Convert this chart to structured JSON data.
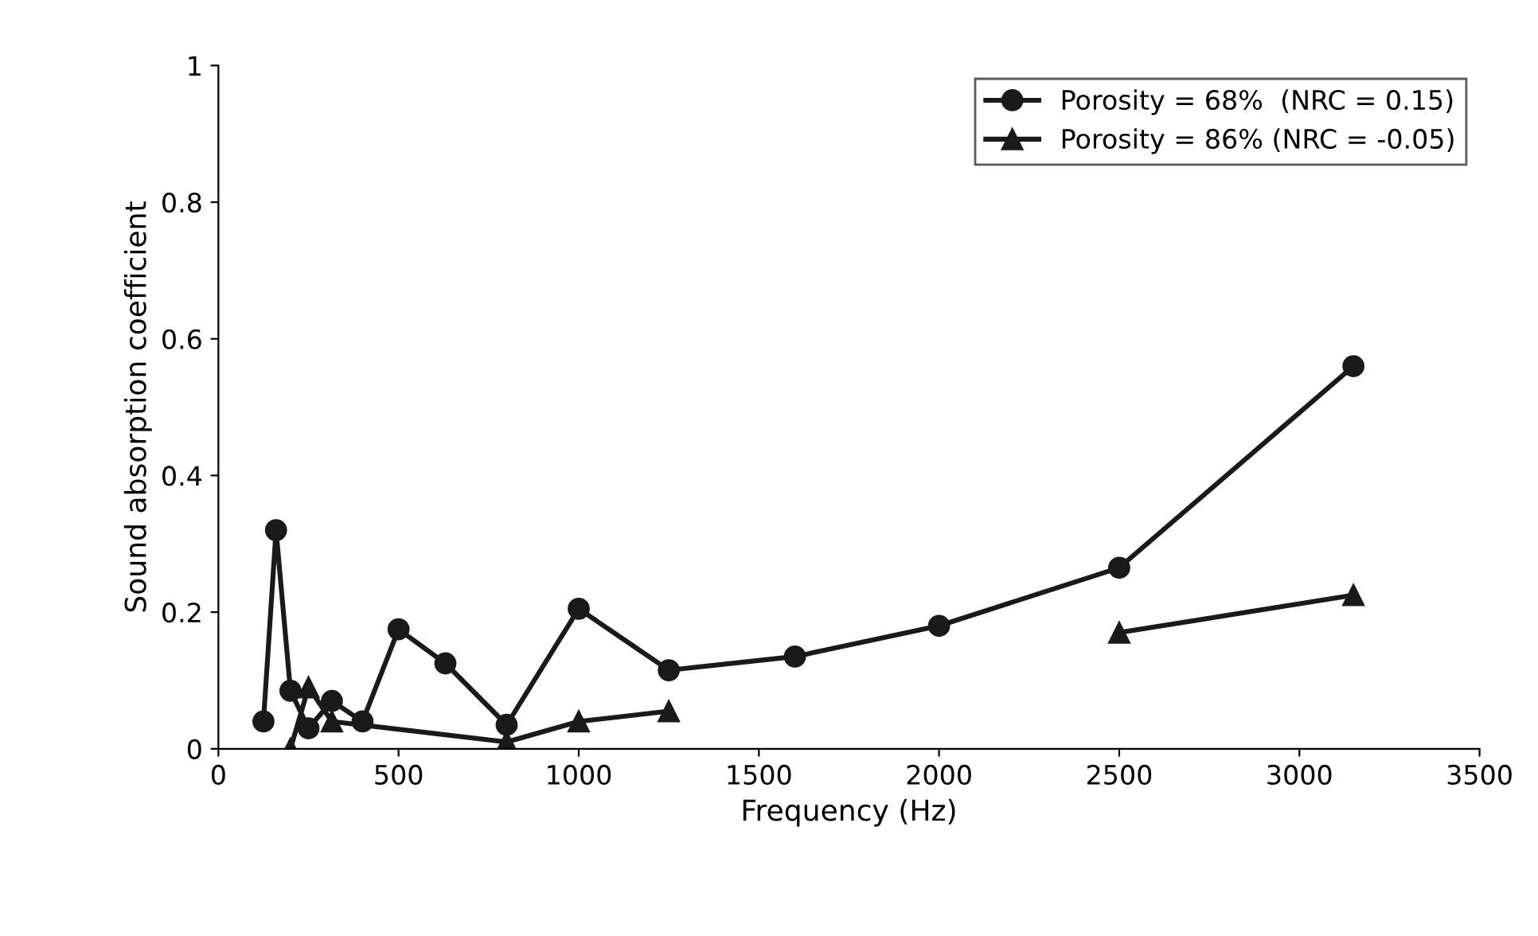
{
  "chart_data": {
    "type": "line",
    "xlabel": "Frequency (Hz)",
    "ylabel": "Sound absorption coefficient",
    "xlim": [
      0,
      3500
    ],
    "xticks": [
      0,
      500,
      1000,
      1500,
      2000,
      2500,
      3000,
      3500
    ],
    "ylim": [
      0,
      1
    ],
    "yticks": [
      0,
      0.2,
      0.4,
      0.6,
      0.8,
      1
    ],
    "legend": "top right",
    "grid": false,
    "line_style": "solid",
    "series": [
      {
        "name": "Porosity = 68%  (NRC = 0.15)",
        "color": "#1a1a1a",
        "marker": "circle",
        "x": [
          125,
          160,
          200,
          250,
          315,
          400,
          500,
          630,
          800,
          1000,
          1250,
          1600,
          2000,
          2500,
          3150
        ],
        "values": [
          0.04,
          0.32,
          0.085,
          0.03,
          0.07,
          0.04,
          0.175,
          0.125,
          0.035,
          0.205,
          0.115,
          0.135,
          0.18,
          0.265,
          0.56
        ]
      },
      {
        "name": "Porosity = 86% (NRC = -0.05)",
        "color": "#1a1a1a",
        "marker": "triangle",
        "x": [
          200,
          250,
          315,
          800,
          1000,
          1250,
          1600,
          2000,
          2500,
          3150
        ],
        "values": [
          0.0,
          0.09,
          0.04,
          0.01,
          0.04,
          0.055,
          null,
          null,
          0.17,
          0.225
        ]
      }
    ]
  }
}
